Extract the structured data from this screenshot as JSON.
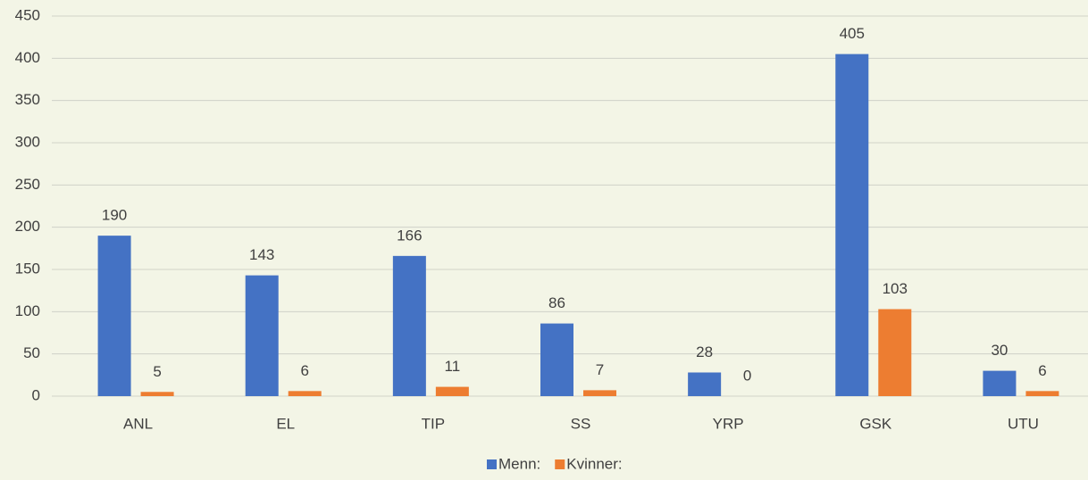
{
  "chart_data": {
    "type": "bar",
    "categories": [
      "ANL",
      "EL",
      "TIP",
      "SS",
      "YRP",
      "GSK",
      "UTU"
    ],
    "series": [
      {
        "name": "Menn:",
        "color": "#4472c4",
        "values": [
          190,
          143,
          166,
          86,
          28,
          405,
          30
        ]
      },
      {
        "name": "Kvinner:",
        "color": "#ed7d31",
        "values": [
          5,
          6,
          11,
          7,
          0,
          103,
          6
        ]
      }
    ],
    "ylim": [
      0,
      450
    ],
    "yticks": [
      0,
      50,
      100,
      150,
      200,
      250,
      300,
      350,
      400,
      450
    ],
    "grid": true,
    "legend": "bottom"
  }
}
